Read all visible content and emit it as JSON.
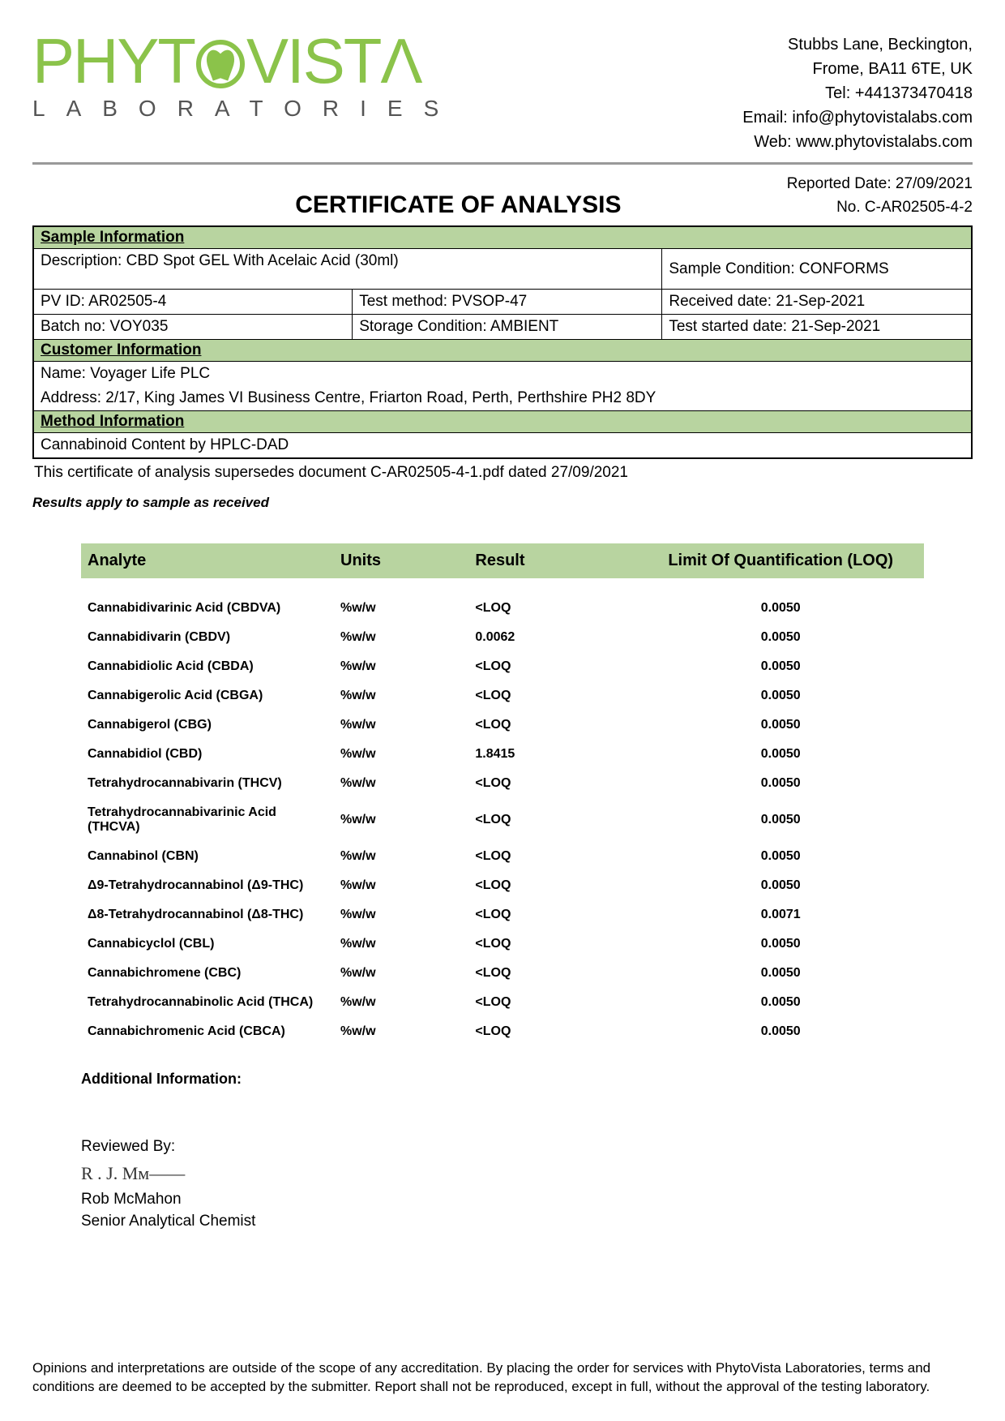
{
  "company": {
    "logo_main": "PHYT   VISTΛ",
    "logo_sub": "LABORATORIES",
    "address_line1": "Stubbs Lane, Beckington,",
    "address_line2": "Frome, BA11 6TE, UK",
    "tel": "Tel: +441373470418",
    "email": "Email: info@phytovistalabs.com",
    "web": "Web: www.phytovistalabs.com"
  },
  "title": "CERTIFICATE OF ANALYSIS",
  "report": {
    "reported_date": "Reported Date: 27/09/2021",
    "number": "No. C-AR02505-4-2"
  },
  "sections": {
    "sample_header": "Sample Information",
    "customer_header": "Customer Information",
    "method_header": "Method Information"
  },
  "sample": {
    "description_label": "Description: CBD Spot GEL With Acelaic Acid (30ml)",
    "condition": "Sample Condition: CONFORMS",
    "pv_id": "PV ID: AR02505-4",
    "test_method": "Test method: PVSOP-47",
    "received": "Received date: 21-Sep-2021",
    "batch": "Batch no: VOY035",
    "storage": "Storage Condition: AMBIENT",
    "started": "Test started date: 21-Sep-2021"
  },
  "customer": {
    "name": "Name:   Voyager Life PLC",
    "address": "Address:   2/17, King James VI Business Centre, Friarton Road, Perth, Perthshire PH2 8DY"
  },
  "method": {
    "text": "Cannabinoid Content by HPLC-DAD"
  },
  "supersede": "This certificate of analysis supersedes document C-AR02505-4-1.pdf dated 27/09/2021",
  "results_note": "Results apply to sample as received",
  "results": {
    "columns": [
      "Analyte",
      "Units",
      "Result",
      "Limit Of Quantification (LOQ)"
    ],
    "rows": [
      [
        "Cannabidivarinic Acid (CBDVA)",
        "%w/w",
        "<LOQ",
        "0.0050"
      ],
      [
        "Cannabidivarin (CBDV)",
        "%w/w",
        "0.0062",
        "0.0050"
      ],
      [
        "Cannabidiolic Acid (CBDA)",
        "%w/w",
        "<LOQ",
        "0.0050"
      ],
      [
        "Cannabigerolic Acid (CBGA)",
        "%w/w",
        "<LOQ",
        "0.0050"
      ],
      [
        "Cannabigerol (CBG)",
        "%w/w",
        "<LOQ",
        "0.0050"
      ],
      [
        "Cannabidiol (CBD)",
        "%w/w",
        "1.8415",
        "0.0050"
      ],
      [
        "Tetrahydrocannabivarin (THCV)",
        "%w/w",
        "<LOQ",
        "0.0050"
      ],
      [
        "Tetrahydrocannabivarinic Acid (THCVA)",
        "%w/w",
        "<LOQ",
        "0.0050"
      ],
      [
        "Cannabinol (CBN)",
        "%w/w",
        "<LOQ",
        "0.0050"
      ],
      [
        "Δ9-Tetrahydrocannabinol (Δ9-THC)",
        "%w/w",
        "<LOQ",
        "0.0050"
      ],
      [
        "Δ8-Tetrahydrocannabinol (Δ8-THC)",
        "%w/w",
        "<LOQ",
        "0.0071"
      ],
      [
        "Cannabicyclol (CBL)",
        "%w/w",
        "<LOQ",
        "0.0050"
      ],
      [
        "Cannabichromene (CBC)",
        "%w/w",
        "<LOQ",
        "0.0050"
      ],
      [
        "Tetrahydrocannabinolic Acid (THCA)",
        "%w/w",
        "<LOQ",
        "0.0050"
      ],
      [
        "Cannabichromenic Acid (CBCA)",
        "%w/w",
        "<LOQ",
        "0.0050"
      ]
    ]
  },
  "additional_label": "Additional Information:",
  "review": {
    "label": "Reviewed By:",
    "signature": "R . J. Mᴍ——",
    "name": "Rob McMahon",
    "title": "Senior Analytical Chemist"
  },
  "disclaimer": "Opinions and interpretations are outside of the scope of any accreditation. By placing the order for services with PhytoVista Laboratories, terms and conditions are deemed to be accepted by the submitter. Report shall not be reproduced, except in full, without the approval of the testing laboratory.",
  "colors": {
    "accent_green": "#8bc34a",
    "header_bg": "#b8d4a0",
    "border": "#000000",
    "hr": "#999999"
  }
}
